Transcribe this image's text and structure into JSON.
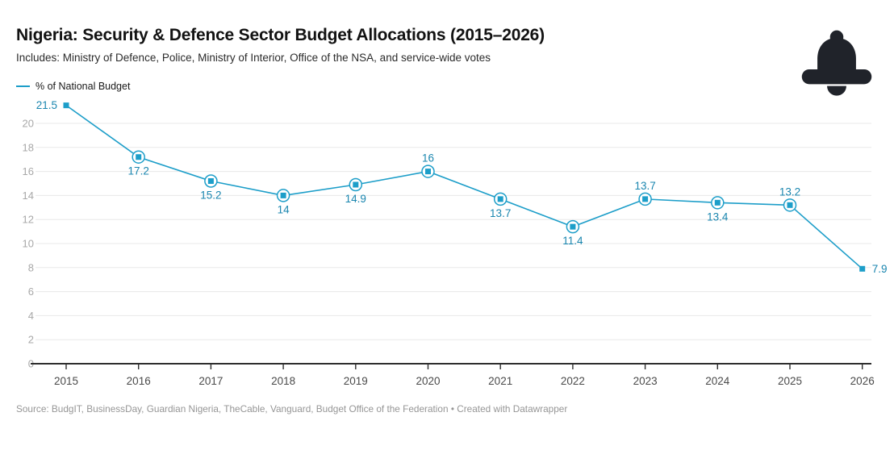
{
  "header": {
    "title": "Nigeria: Security & Defence Sector Budget Allocations (2015–2026)",
    "subtitle": "Includes: Ministry of Defence, Police, Ministry of Interior, Office of the NSA, and service-wide votes"
  },
  "legend": {
    "label": "% of National Budget"
  },
  "footer": {
    "source": "Source: BudgIT, BusinessDay, Guardian Nigeria, TheCable, Vanguard, Budget Office of the Federation • Created with Datawrapper"
  },
  "icons": {
    "bell": "notification-bell-icon"
  },
  "colors": {
    "line": "#1d9ec9",
    "value_label": "#1a86af",
    "grid": "#e8e8e8",
    "axis": "#2e2e2e",
    "y_tick_label": "#a8a8a8",
    "x_tick_label": "#4a4a4a",
    "bell": "#20232a"
  },
  "chart_data": {
    "type": "line",
    "title": "Nigeria: Security & Defence Sector Budget Allocations (2015–2026)",
    "subtitle": "Includes: Ministry of Defence, Police, Ministry of Interior, Office of the NSA, and service-wide votes",
    "series": [
      {
        "name": "% of National Budget",
        "values": [
          21.5,
          17.2,
          15.2,
          14,
          14.9,
          16,
          13.7,
          11.4,
          13.7,
          13.4,
          13.2,
          7.9
        ],
        "value_label_positions": [
          "left",
          "below",
          "below",
          "below",
          "below",
          "above",
          "below",
          "below",
          "above",
          "below",
          "above",
          "right"
        ]
      }
    ],
    "categories": [
      "2015",
      "2016",
      "2017",
      "2018",
      "2019",
      "2020",
      "2021",
      "2022",
      "2023",
      "2024",
      "2025",
      "2026"
    ],
    "xlabel": "",
    "ylabel": "",
    "ylim": [
      0,
      22
    ],
    "yticks": [
      0,
      2,
      4,
      6,
      8,
      10,
      12,
      14,
      16,
      18,
      20
    ],
    "grid": "horizontal",
    "legend_position": "top-left"
  }
}
